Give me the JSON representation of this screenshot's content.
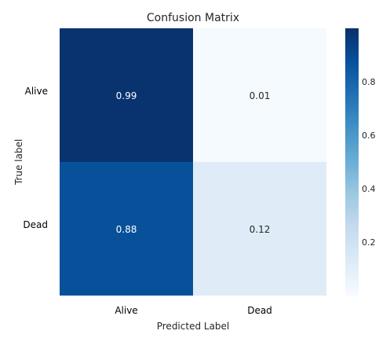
{
  "chart_data": {
    "type": "heatmap",
    "title": "Confusion Matrix",
    "xlabel": "Predicted Label",
    "ylabel": "True label",
    "x_categories": [
      "Alive",
      "Dead"
    ],
    "y_categories": [
      "Alive",
      "Dead"
    ],
    "values": [
      [
        0.99,
        0.01
      ],
      [
        0.88,
        0.12
      ]
    ],
    "value_labels": [
      [
        "0.99",
        "0.01"
      ],
      [
        "0.88",
        "0.12"
      ]
    ],
    "colormap": "Blues",
    "colorbar": {
      "range": [
        0,
        1
      ],
      "ticks": [
        0.2,
        0.4,
        0.6,
        0.8
      ],
      "tick_labels": [
        "0.2",
        "0.4",
        "0.6",
        "0.8"
      ]
    },
    "grid": false
  }
}
